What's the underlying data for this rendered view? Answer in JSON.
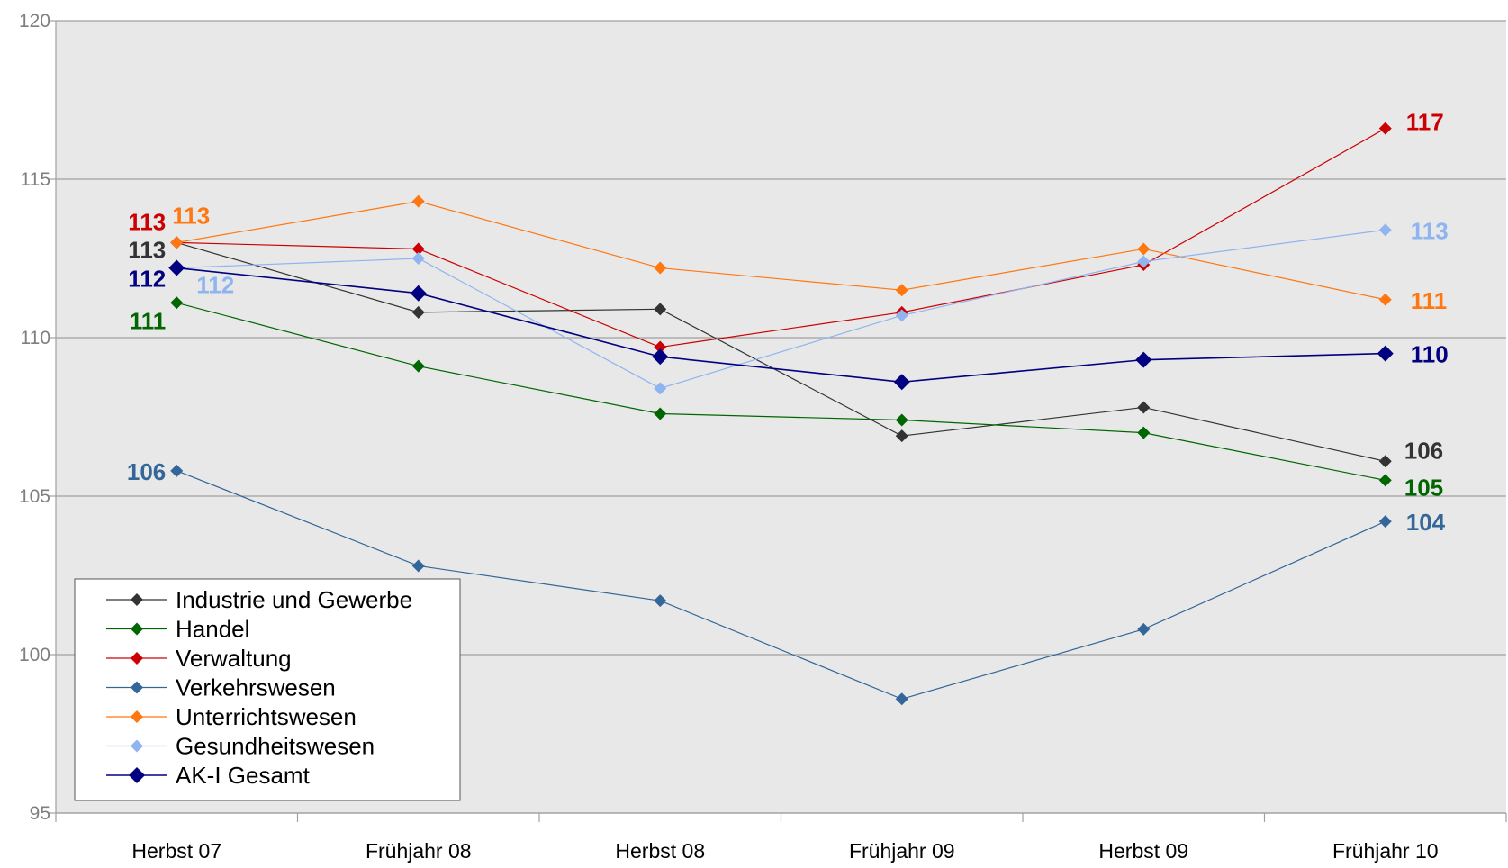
{
  "chart_data": {
    "type": "line",
    "title": "",
    "xlabel": "",
    "ylabel": "",
    "ylim": [
      95,
      120
    ],
    "yticks": [
      95,
      100,
      105,
      110,
      115,
      120
    ],
    "grid": true,
    "legend_position": "bottom-left",
    "plot_background": "#e8e8e8",
    "categories": [
      "Herbst 07",
      "Frühjahr 08",
      "Herbst 08",
      "Frühjahr 09",
      "Herbst 09",
      "Frühjahr 10"
    ],
    "series": [
      {
        "name": "Industrie und Gewerbe",
        "color": "#333333",
        "values": [
          113.0,
          110.8,
          110.9,
          106.9,
          107.8,
          106.1
        ],
        "labels": {
          "start": "113",
          "end": "106"
        }
      },
      {
        "name": "Handel",
        "color": "#006600",
        "values": [
          111.1,
          109.1,
          107.6,
          107.4,
          107.0,
          105.5
        ],
        "labels": {
          "start": "111",
          "end": "105"
        }
      },
      {
        "name": "Verwaltung",
        "color": "#cc0000",
        "values": [
          113.0,
          112.8,
          109.7,
          110.8,
          112.3,
          116.6
        ],
        "labels": {
          "start": "113",
          "end": "117"
        }
      },
      {
        "name": "Verkehrswesen",
        "color": "#336699",
        "values": [
          105.8,
          102.8,
          101.7,
          98.6,
          100.8,
          104.2
        ],
        "labels": {
          "start": "106",
          "end": "104"
        }
      },
      {
        "name": "Unterrichtswesen",
        "color": "#ff7711",
        "values": [
          113.0,
          114.3,
          112.2,
          111.5,
          112.8,
          111.2
        ],
        "labels": {
          "start": "113",
          "end": "111"
        }
      },
      {
        "name": "Gesundheitswesen",
        "color": "#8fb4f0",
        "values": [
          112.2,
          112.5,
          108.4,
          110.7,
          112.4,
          113.4
        ],
        "labels": {
          "start": "112",
          "end": "113"
        }
      },
      {
        "name": "AK-I Gesamt",
        "color": "#000080",
        "values": [
          112.2,
          111.4,
          109.4,
          108.6,
          109.3,
          109.5
        ],
        "labels": {
          "start": "112",
          "end": "110"
        }
      }
    ]
  }
}
